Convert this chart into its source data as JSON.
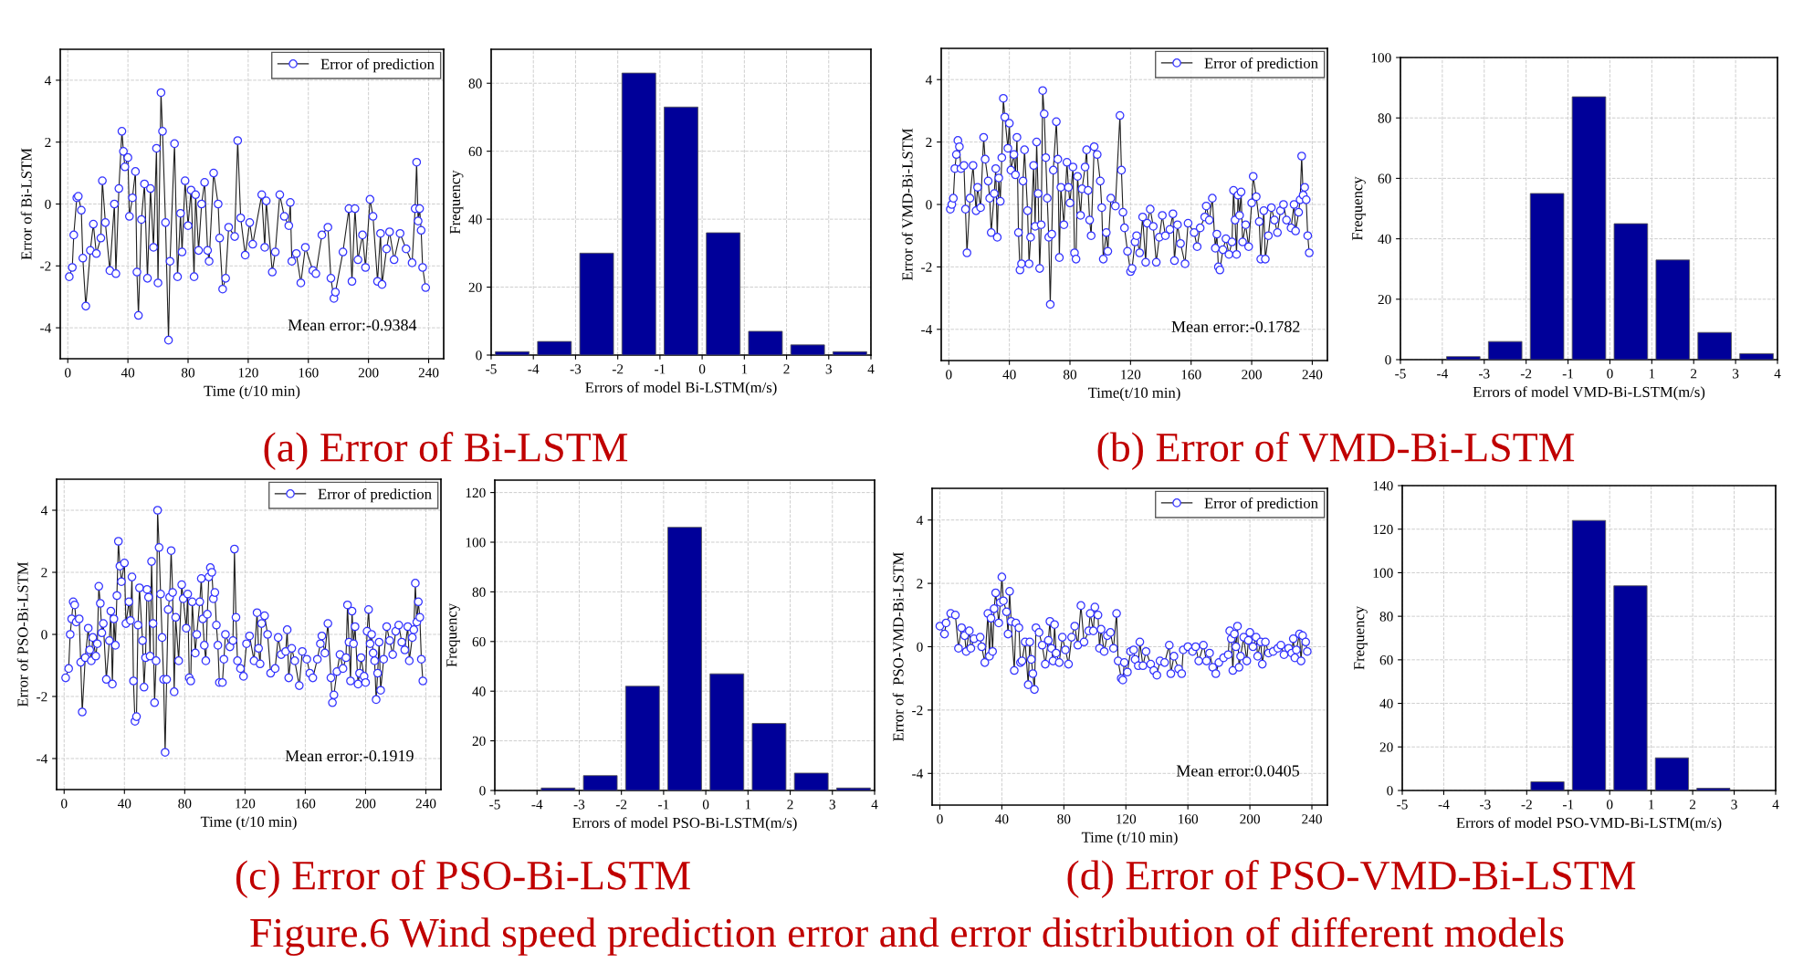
{
  "chart_data": [
    {
      "type": "line",
      "title": "(a) Error of Bi-LSTM",
      "xlabel": "Time (t/10 min)",
      "ylabel": "Error of Bi-LSTM",
      "xlim": [
        -5,
        250
      ],
      "xticks": [
        0,
        40,
        80,
        120,
        160,
        200,
        240
      ],
      "ylim": [
        -5,
        5
      ],
      "yticks": [
        -4,
        -2,
        0,
        2,
        4
      ],
      "grid": true,
      "legend": "top right",
      "marker": "circle",
      "line_style": "solid",
      "annotations": [
        "Mean error:-0.9384",
        "Figure.6 Wind speed prediction error and error distribution of different models"
      ],
      "series": [
        {
          "name": "Error of prediction",
          "color": "#3333ff",
          "x": [
            1,
            3,
            4,
            6,
            7,
            9,
            10,
            12,
            15,
            17,
            19,
            22,
            23,
            25,
            28,
            31,
            32,
            34,
            36,
            37,
            38,
            40,
            41,
            43,
            45,
            46,
            47,
            49,
            51,
            53,
            55,
            57,
            59,
            60,
            62,
            63,
            65,
            67,
            68,
            71,
            73,
            75,
            76,
            78,
            80,
            82,
            84,
            85,
            87,
            89,
            91,
            93,
            94,
            97,
            100,
            101,
            103,
            105,
            107,
            111,
            113,
            115,
            118,
            121,
            123,
            129,
            131,
            132,
            136,
            138,
            141,
            144,
            147,
            148,
            149,
            152,
            155,
            158,
            163,
            165,
            169,
            173,
            175,
            177,
            178,
            183,
            187,
            189,
            191,
            193,
            196,
            198,
            201,
            203,
            206,
            208,
            209,
            212,
            214,
            217,
            221,
            225,
            229,
            231,
            232,
            233,
            234,
            235,
            236,
            238
          ],
          "values": [
            -2.35,
            -2.05,
            -1.0,
            0.2,
            0.25,
            -0.2,
            -1.75,
            -3.3,
            -1.5,
            -0.65,
            -1.6,
            -1.1,
            0.75,
            -0.6,
            -2.15,
            0.0,
            -2.25,
            0.5,
            2.35,
            1.7,
            1.2,
            1.5,
            -0.4,
            0.2,
            1.05,
            -2.2,
            -3.6,
            -0.5,
            0.65,
            -2.4,
            0.5,
            -1.4,
            1.8,
            -2.55,
            3.6,
            2.35,
            -0.6,
            -4.4,
            -1.85,
            1.95,
            -2.35,
            -0.3,
            -1.55,
            0.75,
            -0.7,
            0.45,
            -2.35,
            0.3,
            -1.5,
            0.0,
            0.7,
            -1.5,
            -1.85,
            1.0,
            0.0,
            -1.1,
            -2.75,
            -2.4,
            -0.75,
            -1.05,
            2.05,
            -0.45,
            -1.65,
            -0.6,
            -1.3,
            0.3,
            -1.4,
            0.1,
            -2.2,
            -1.55,
            0.3,
            -0.4,
            -0.7,
            0.05,
            -1.85,
            -1.6,
            -2.55,
            -1.4,
            -2.15,
            -2.25,
            -1.0,
            -0.75,
            -2.4,
            -3.05,
            -2.85,
            -1.55,
            -0.15,
            -2.5,
            -0.15,
            -1.8,
            -1.0,
            -2.05,
            0.15,
            -0.4,
            -2.5,
            -0.95,
            -2.6,
            -1.45,
            -0.9,
            -1.8,
            -0.95,
            -1.45,
            -1.9,
            -0.15,
            1.35,
            -0.55,
            -0.15,
            -0.85,
            -2.05,
            -2.7
          ]
        }
      ]
    },
    {
      "type": "histogram",
      "xlabel": "Errors of model Bi-LSTM(m/s)",
      "ylabel": "Frequency",
      "bins": [
        -5,
        -4,
        -3,
        -2,
        -1,
        0,
        1,
        2,
        3,
        4
      ],
      "values": [
        1,
        4,
        30,
        83,
        73,
        36,
        7,
        3,
        1
      ],
      "color": "#000099",
      "xlim": [
        -5,
        4
      ],
      "xticks": [
        -5,
        -4,
        -3,
        -2,
        -1,
        0,
        1,
        2,
        3,
        4
      ],
      "ylim": [
        0,
        90
      ],
      "yticks": [
        0,
        20,
        40,
        60,
        80
      ],
      "grid": true
    },
    {
      "type": "line",
      "title": "(b) Error of VMD-Bi-LSTM",
      "xlabel": "Time(t/10 min)",
      "ylabel": "Error of VMD-Bi-LSTM",
      "xlim": [
        -5,
        250
      ],
      "xticks": [
        0,
        40,
        80,
        120,
        160,
        200,
        240
      ],
      "ylim": [
        -5,
        5
      ],
      "yticks": [
        -4,
        -2,
        0,
        2,
        4
      ],
      "grid": true,
      "legend": "top right",
      "marker": "circle",
      "line_style": "solid",
      "annotations": [
        "Mean error:-0.1782"
      ],
      "series": [
        {
          "name": "Error of prediction",
          "color": "#3333ff",
          "x": [
            1,
            2,
            3,
            4,
            5,
            6,
            7,
            8,
            10,
            11,
            12,
            14,
            16,
            18,
            19,
            21,
            23,
            24,
            26,
            27,
            28,
            30,
            31,
            32,
            33,
            34,
            35,
            36,
            37,
            39,
            40,
            41,
            43,
            44,
            45,
            46,
            47,
            48,
            49,
            50,
            52,
            53,
            54,
            56,
            57,
            58,
            59,
            60,
            61,
            62,
            63,
            64,
            65,
            66,
            67,
            68,
            69,
            71,
            72,
            73,
            74,
            76,
            78,
            79,
            80,
            82,
            83,
            84,
            85,
            87,
            88,
            90,
            91,
            92,
            93,
            94,
            96,
            98,
            100,
            101,
            102,
            104,
            105,
            107,
            110,
            113,
            114,
            115,
            116,
            118,
            120,
            121,
            123,
            124,
            126,
            128,
            130,
            131,
            133,
            135,
            137,
            139,
            141,
            143,
            146,
            148,
            149,
            151,
            153,
            156,
            158,
            162,
            164,
            166,
            169,
            170,
            172,
            174,
            176,
            177,
            178,
            179,
            181,
            183,
            185,
            187,
            188,
            189,
            190,
            191,
            192,
            193,
            194,
            196,
            198,
            200,
            201,
            203,
            205,
            206,
            208,
            209,
            211,
            213,
            215,
            217,
            219,
            221,
            223,
            226,
            228,
            229,
            231,
            232,
            233,
            234,
            235,
            236,
            237,
            238
          ],
          "values": [
            -0.15,
            0.0,
            0.2,
            1.15,
            1.6,
            2.05,
            1.85,
            1.15,
            1.25,
            -0.15,
            -1.55,
            0.2,
            1.25,
            -0.2,
            0.55,
            -0.1,
            2.15,
            1.45,
            0.75,
            0.2,
            -0.9,
            0.35,
            1.15,
            -1.05,
            0.85,
            0.1,
            1.5,
            3.4,
            2.8,
            1.8,
            2.6,
            1.1,
            1.6,
            0.95,
            2.15,
            -0.9,
            -2.1,
            -1.9,
            0.75,
            1.75,
            -0.2,
            -1.9,
            -1.05,
            1.25,
            -0.7,
            2.0,
            0.35,
            -2.05,
            -0.65,
            3.65,
            2.9,
            1.5,
            0.2,
            -1.05,
            -3.2,
            -0.95,
            1.1,
            2.65,
            1.45,
            -1.7,
            0.55,
            -0.65,
            1.35,
            0.55,
            0.05,
            1.2,
            -1.55,
            -1.75,
            0.9,
            -0.35,
            0.5,
            1.2,
            1.75,
            0.45,
            -0.5,
            -1.0,
            1.85,
            1.6,
            0.75,
            -0.1,
            -1.75,
            -0.9,
            -1.5,
            0.2,
            -0.05,
            2.85,
            1.1,
            -0.25,
            -0.75,
            -1.5,
            -2.15,
            -2.05,
            -1.2,
            -1.0,
            -1.55,
            -0.4,
            -1.85,
            -0.6,
            -0.15,
            -0.7,
            -1.85,
            -1.05,
            -0.35,
            -1.0,
            -0.8,
            -0.3,
            -1.8,
            -0.65,
            -1.25,
            -1.9,
            -0.6,
            -0.9,
            -1.35,
            -0.75,
            -0.4,
            -0.05,
            -0.5,
            0.2,
            -1.4,
            -0.95,
            -2.0,
            -2.1,
            -1.45,
            -1.1,
            -1.6,
            -1.2,
            0.45,
            -0.5,
            -1.6,
            0.3,
            -0.35,
            0.4,
            -1.2,
            -0.65,
            -1.35,
            0.05,
            0.9,
            0.25,
            -0.55,
            -1.75,
            -0.2,
            -1.75,
            -1.0,
            -0.1,
            -0.5,
            -0.9,
            -0.2,
            0.0,
            -0.5,
            -0.75,
            0.0,
            -0.85,
            -0.25,
            0.15,
            1.55,
            0.3,
            0.55,
            0.15,
            -1.0,
            -1.55
          ]
        }
      ]
    },
    {
      "type": "histogram",
      "xlabel": "Errors of model VMD-Bi-LSTM(m/s)",
      "ylabel": "Frequency",
      "bins": [
        -5,
        -4,
        -3,
        -2,
        -1,
        0,
        1,
        2,
        3,
        4
      ],
      "values": [
        0,
        1,
        6,
        55,
        87,
        45,
        33,
        9,
        2
      ],
      "color": "#000099",
      "xlim": [
        -5,
        4
      ],
      "xticks": [
        -5,
        -4,
        -3,
        -2,
        -1,
        0,
        1,
        2,
        3,
        4
      ],
      "ylim": [
        0,
        100
      ],
      "yticks": [
        0,
        20,
        40,
        60,
        80,
        100
      ],
      "grid": true
    },
    {
      "type": "line",
      "title": "(c) Error of PSO-Bi-LSTM",
      "xlabel": "Time (t/10 min)",
      "ylabel": "Error of PSO-Bi-LSTM",
      "xlim": [
        -5,
        250
      ],
      "xticks": [
        0,
        40,
        80,
        120,
        160,
        200,
        240
      ],
      "ylim": [
        -5,
        5
      ],
      "yticks": [
        -4,
        -2,
        0,
        2,
        4
      ],
      "grid": true,
      "legend": "top right",
      "marker": "circle",
      "line_style": "solid",
      "annotations": [
        "Mean error:-0.1919"
      ],
      "series": [
        {
          "name": "Error of prediction",
          "color": "#3333ff",
          "x": [
            1,
            3,
            4,
            5,
            6,
            7,
            8,
            10,
            11,
            12,
            14,
            16,
            17,
            18,
            19,
            21,
            22,
            23,
            24,
            25,
            26,
            28,
            30,
            31,
            32,
            33,
            34,
            35,
            36,
            37,
            38,
            40,
            41,
            43,
            44,
            45,
            46,
            47,
            48,
            49,
            50,
            52,
            53,
            54,
            55,
            56,
            57,
            58,
            59,
            60,
            61,
            62,
            63,
            64,
            65,
            66,
            67,
            68,
            69,
            70,
            71,
            72,
            73,
            74,
            76,
            78,
            79,
            81,
            82,
            83,
            84,
            85,
            87,
            88,
            90,
            91,
            92,
            93,
            94,
            95,
            96,
            97,
            98,
            99,
            100,
            101,
            102,
            103,
            105,
            106,
            107,
            110,
            112,
            113,
            114,
            115,
            117,
            119,
            121,
            123,
            126,
            128,
            129,
            130,
            131,
            133,
            135,
            137,
            140,
            142,
            144,
            147,
            148,
            149,
            151,
            153,
            156,
            158,
            161,
            163,
            165,
            168,
            170,
            171,
            173,
            175,
            177,
            178,
            179,
            181,
            183,
            185,
            187,
            188,
            189,
            190,
            191,
            192,
            193,
            195,
            196,
            197,
            199,
            200,
            201,
            202,
            203,
            204,
            205,
            206,
            207,
            208,
            209,
            210,
            212,
            214,
            216,
            218,
            220,
            222,
            224,
            226,
            228,
            229,
            231,
            232,
            233,
            234,
            235,
            236,
            237,
            238
          ],
          "values": [
            -1.4,
            -1.1,
            0.0,
            0.5,
            1.05,
            0.95,
            0.4,
            0.5,
            -0.9,
            -2.5,
            -0.75,
            0.2,
            -0.5,
            -0.85,
            -0.1,
            -0.7,
            -0.3,
            1.55,
            1.0,
            0.05,
            0.35,
            -1.45,
            -0.2,
            0.75,
            -1.6,
            0.5,
            -0.35,
            1.25,
            3.0,
            2.2,
            1.7,
            2.3,
            0.35,
            1.05,
            0.45,
            1.85,
            -1.5,
            -2.8,
            -2.65,
            0.3,
            1.5,
            -0.2,
            -1.7,
            -0.75,
            1.45,
            1.2,
            -0.7,
            2.35,
            0.35,
            -2.2,
            -0.85,
            4.0,
            2.8,
            1.3,
            -0.1,
            -1.45,
            -3.8,
            -1.45,
            0.8,
            1.2,
            2.7,
            1.35,
            -1.85,
            0.55,
            -0.85,
            1.6,
            1.15,
            0.2,
            1.3,
            -1.4,
            -1.5,
            1.05,
            -0.6,
            0.0,
            1.05,
            1.8,
            0.5,
            -0.35,
            -0.85,
            0.65,
            1.85,
            2.15,
            2.0,
            1.15,
            1.35,
            0.3,
            -0.35,
            -1.55,
            -1.55,
            -0.8,
            0.0,
            -0.4,
            -0.2,
            2.75,
            0.55,
            -0.85,
            -1.1,
            -1.35,
            -0.3,
            -0.05,
            -0.85,
            0.7,
            -0.45,
            -0.95,
            0.35,
            0.6,
            0.0,
            -1.25,
            -1.1,
            -0.1,
            -0.65,
            -0.55,
            0.15,
            -1.4,
            -0.45,
            -0.85,
            -1.65,
            -0.55,
            -0.8,
            -1.25,
            -1.4,
            -0.8,
            -0.3,
            -0.05,
            -0.6,
            0.35,
            -1.4,
            -2.2,
            -1.95,
            -1.2,
            -0.65,
            -1.1,
            -0.75,
            0.95,
            -0.25,
            -1.5,
            0.75,
            -0.3,
            0.25,
            -1.6,
            -1.25,
            -0.75,
            -1.35,
            -1.55,
            0.1,
            0.8,
            -0.3,
            0.0,
            -0.6,
            -0.85,
            -2.1,
            -1.25,
            -0.25,
            -1.8,
            -0.8,
            0.25,
            -0.2,
            -0.65,
            0.1,
            0.3,
            -0.25,
            -0.5,
            0.25,
            -0.85,
            -0.1,
            0.15,
            1.65,
            0.4,
            1.05,
            0.55,
            -0.8,
            -1.5
          ]
        }
      ]
    },
    {
      "type": "histogram",
      "xlabel": "Errors of model PSO-Bi-LSTM(m/s)",
      "ylabel": "Frequency",
      "bins": [
        -5,
        -4,
        -3,
        -2,
        -1,
        0,
        1,
        2,
        3,
        4
      ],
      "values": [
        0,
        1,
        6,
        42,
        106,
        47,
        27,
        7,
        1
      ],
      "color": "#000099",
      "xlim": [
        -5,
        4
      ],
      "xticks": [
        -5,
        -4,
        -3,
        -2,
        -1,
        0,
        1,
        2,
        3,
        4
      ],
      "ylim": [
        0,
        125
      ],
      "yticks": [
        0,
        20,
        40,
        60,
        80,
        100,
        120
      ],
      "grid": true
    },
    {
      "type": "line",
      "title": "(d) Error of PSO-VMD-Bi-LSTM",
      "xlabel": "Time (t/10 min)",
      "ylabel": "Error of  PSO-VMD-Bi-LSTM",
      "xlim": [
        -5,
        250
      ],
      "xticks": [
        0,
        40,
        80,
        120,
        160,
        200,
        240
      ],
      "ylim": [
        -5,
        5
      ],
      "yticks": [
        -4,
        -2,
        0,
        2,
        4
      ],
      "grid": true,
      "legend": "top right",
      "marker": "circle",
      "line_style": "solid",
      "annotations": [
        "Mean error:0.0405"
      ],
      "series": [
        {
          "name": "Error of prediction",
          "color": "#3333ff",
          "x": [
            0,
            3,
            4,
            7,
            10,
            12,
            14,
            16,
            17,
            19,
            20,
            22,
            26,
            27,
            29,
            31,
            32,
            33,
            34,
            35,
            36,
            38,
            39,
            40,
            41,
            43,
            44,
            45,
            46,
            48,
            49,
            51,
            52,
            53,
            55,
            57,
            58,
            59,
            60,
            61,
            62,
            64,
            66,
            68,
            70,
            71,
            72,
            73,
            74,
            75,
            77,
            79,
            81,
            83,
            85,
            87,
            89,
            91,
            93,
            96,
            97,
            99,
            100,
            102,
            103,
            104,
            106,
            108,
            110,
            112,
            114,
            115,
            117,
            118,
            119,
            121,
            123,
            125,
            126,
            128,
            129,
            131,
            133,
            136,
            138,
            140,
            142,
            145,
            148,
            149,
            151,
            154,
            156,
            157,
            160,
            163,
            165,
            167,
            170,
            172,
            174,
            176,
            178,
            180,
            183,
            186,
            187,
            188,
            189,
            190,
            191,
            192,
            193,
            194,
            196,
            198,
            199,
            200,
            202,
            204,
            205,
            207,
            208,
            210,
            212,
            215,
            218,
            220,
            222,
            225,
            227,
            228,
            229,
            230,
            232,
            233,
            234,
            236,
            237
          ],
          "values": [
            0.65,
            0.4,
            0.75,
            1.05,
            1.0,
            -0.05,
            0.6,
            0.35,
            -0.15,
            0.5,
            -0.05,
            0.25,
            0.3,
            0.0,
            -0.5,
            1.05,
            -0.3,
            0.9,
            -0.15,
            1.2,
            1.7,
            0.75,
            1.4,
            2.2,
            1.45,
            1.1,
            0.4,
            1.75,
            0.8,
            -0.75,
            0.75,
            0.6,
            -0.5,
            -0.45,
            0.15,
            -1.2,
            0.15,
            -0.4,
            -0.85,
            -1.35,
            0.6,
            0.45,
            0.05,
            -0.55,
            0.2,
            0.8,
            -0.05,
            -0.45,
            0.7,
            -0.2,
            -0.5,
            0.3,
            -0.1,
            -0.55,
            0.3,
            0.65,
            0.05,
            1.3,
            0.15,
            0.5,
            1.05,
            0.5,
            1.25,
            1.0,
            -0.05,
            0.55,
            -0.15,
            0.35,
            0.45,
            -0.05,
            1.05,
            -0.45,
            -1.0,
            -1.05,
            -0.5,
            -0.8,
            -0.15,
            -0.1,
            -0.4,
            -0.6,
            0.15,
            -0.6,
            -0.15,
            -0.55,
            -0.75,
            -0.9,
            -0.45,
            -0.5,
            0.05,
            -0.85,
            -0.3,
            -0.7,
            -0.85,
            -0.1,
            0.0,
            -0.15,
            0.0,
            -0.45,
            0.05,
            -0.45,
            -0.2,
            -0.65,
            -0.85,
            -0.5,
            -0.35,
            -0.25,
            0.5,
            0.25,
            -0.75,
            0.4,
            0.0,
            0.65,
            -0.65,
            -0.3,
            0.3,
            -0.45,
            0.2,
            0.45,
            0.0,
            0.3,
            -0.3,
            0.15,
            -0.55,
            0.15,
            -0.2,
            -0.15,
            -0.05,
            0.05,
            -0.25,
            -0.05,
            -0.2,
            0.25,
            -0.35,
            -0.1,
            0.4,
            -0.45,
            0.35,
            0.15,
            -0.15
          ]
        }
      ]
    },
    {
      "type": "histogram",
      "xlabel": "Errors of model PSO-VMD-Bi-LSTM(m/s)",
      "ylabel": "Frequency",
      "bins": [
        -5,
        -4,
        -3,
        -2,
        -1,
        0,
        1,
        2,
        3,
        4
      ],
      "values": [
        0,
        0,
        0,
        4,
        124,
        94,
        15,
        1,
        0
      ],
      "color": "#000099",
      "xlim": [
        -5,
        4
      ],
      "xticks": [
        -5,
        -4,
        -3,
        -2,
        -1,
        0,
        1,
        2,
        3,
        4
      ],
      "ylim": [
        0,
        140
      ],
      "yticks": [
        0,
        20,
        40,
        60,
        80,
        100,
        120,
        140
      ],
      "grid": true
    }
  ]
}
